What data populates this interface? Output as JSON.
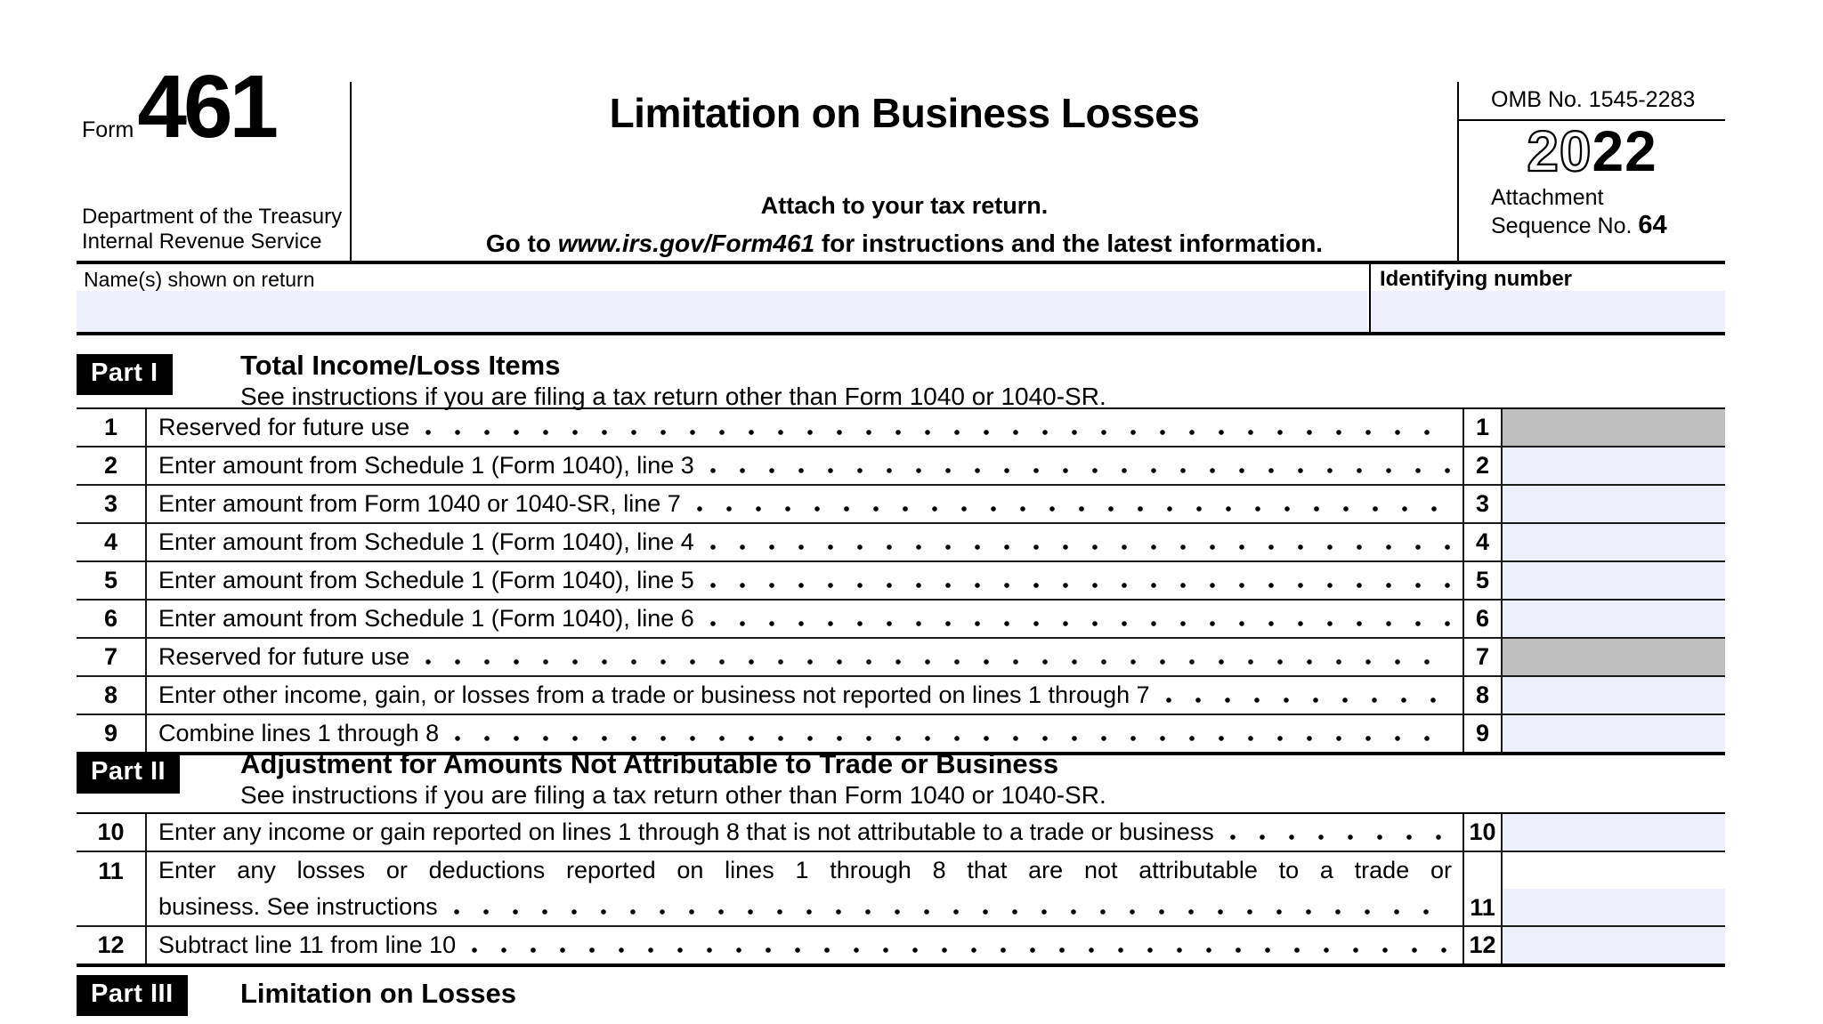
{
  "colors": {
    "input_fill": "#edf0fa",
    "reserved_fill": "#bfbfbf",
    "badge_bg": "#000000"
  },
  "form": {
    "form_label": "Form",
    "form_number": "461",
    "agency_line1": "Department of the Treasury",
    "agency_line2": "Internal Revenue Service",
    "title": "Limitation on Business Losses",
    "attach_line": "Attach to your tax return.",
    "goto_prefix": "Go to ",
    "goto_url": "www.irs.gov/Form461",
    "goto_suffix": " for instructions and the latest information.",
    "omb": "OMB No. 1545-2283",
    "year_outline": "20",
    "year_solid": "22",
    "attachment_line1": "Attachment",
    "attachment_line2": "Sequence No. ",
    "attachment_seq": "64"
  },
  "taxpayer": {
    "name_label": "Name(s) shown on return",
    "name_value": "",
    "id_label": "Identifying number",
    "id_value": ""
  },
  "part1": {
    "badge": "Part I",
    "title": "Total Income/Loss Items",
    "subtitle": "See instructions if you are filing a tax return other than Form 1040 or 1040-SR.",
    "rows": [
      {
        "num": "1",
        "desc": "Reserved for future use",
        "fill": "gray",
        "value": ""
      },
      {
        "num": "2",
        "desc": "Enter amount from Schedule 1 (Form 1040), line 3",
        "fill": "blue",
        "value": ""
      },
      {
        "num": "3",
        "desc": "Enter amount from Form 1040 or 1040-SR, line 7",
        "fill": "blue",
        "value": ""
      },
      {
        "num": "4",
        "desc": "Enter amount from Schedule 1 (Form 1040), line 4",
        "fill": "blue",
        "value": ""
      },
      {
        "num": "5",
        "desc": "Enter amount from Schedule 1 (Form 1040), line 5",
        "fill": "blue",
        "value": ""
      },
      {
        "num": "6",
        "desc": "Enter amount from Schedule 1 (Form 1040), line 6",
        "fill": "blue",
        "value": ""
      },
      {
        "num": "7",
        "desc": "Reserved for future use",
        "fill": "gray",
        "value": ""
      },
      {
        "num": "8",
        "desc": "Enter other income, gain, or losses from a trade or business not reported on lines 1 through 7",
        "fill": "blue",
        "value": ""
      },
      {
        "num": "9",
        "desc": "Combine lines 1 through 8",
        "fill": "blue",
        "value": ""
      }
    ]
  },
  "part2": {
    "badge": "Part II",
    "title": "Adjustment for Amounts Not Attributable to Trade or Business",
    "subtitle": "See instructions if you are filing a tax return other than Form 1040 or 1040-SR.",
    "rows": [
      {
        "num": "10",
        "desc": "Enter any income or gain reported on lines 1 through 8 that is not attributable to a trade or business",
        "fill": "blue",
        "value": ""
      },
      {
        "num": "11",
        "desc_line1": "Enter any losses or deductions reported on lines 1 through 8 that are not attributable to a trade or",
        "desc_line2": "business. See instructions",
        "fill": "blue",
        "value": ""
      },
      {
        "num": "12",
        "desc": "Subtract line 11 from line 10",
        "fill": "blue",
        "value": ""
      }
    ]
  },
  "part3": {
    "badge": "Part III",
    "title": "Limitation on Losses"
  }
}
